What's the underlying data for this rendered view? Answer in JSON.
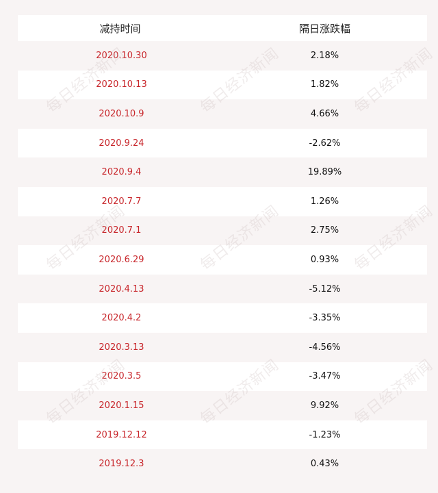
{
  "table": {
    "headers": [
      "减持时间",
      "隔日涨跌幅"
    ],
    "rows": [
      {
        "date": "2020.10.30",
        "change": "2.18%"
      },
      {
        "date": "2020.10.13",
        "change": "1.82%"
      },
      {
        "date": "2020.10.9",
        "change": "4.66%"
      },
      {
        "date": "2020.9.24",
        "change": "-2.62%"
      },
      {
        "date": "2020.9.4",
        "change": "19.89%"
      },
      {
        "date": "2020.7.7",
        "change": "1.26%"
      },
      {
        "date": "2020.7.1",
        "change": "2.75%"
      },
      {
        "date": "2020.6.29",
        "change": "0.93%"
      },
      {
        "date": "2020.4.13",
        "change": "-5.12%"
      },
      {
        "date": "2020.4.2",
        "change": "-3.35%"
      },
      {
        "date": "2020.3.13",
        "change": "-4.56%"
      },
      {
        "date": "2020.3.5",
        "change": "-3.47%"
      },
      {
        "date": "2020.1.15",
        "change": "9.92%"
      },
      {
        "date": "2019.12.12",
        "change": "-1.23%"
      },
      {
        "date": "2019.12.3",
        "change": "0.43%"
      }
    ]
  },
  "watermark": "每日经济新闻",
  "colors": {
    "date_text": "#c8262b",
    "value_text": "#111111",
    "row_white": "#ffffff",
    "row_tint": "#f8f4f4"
  }
}
